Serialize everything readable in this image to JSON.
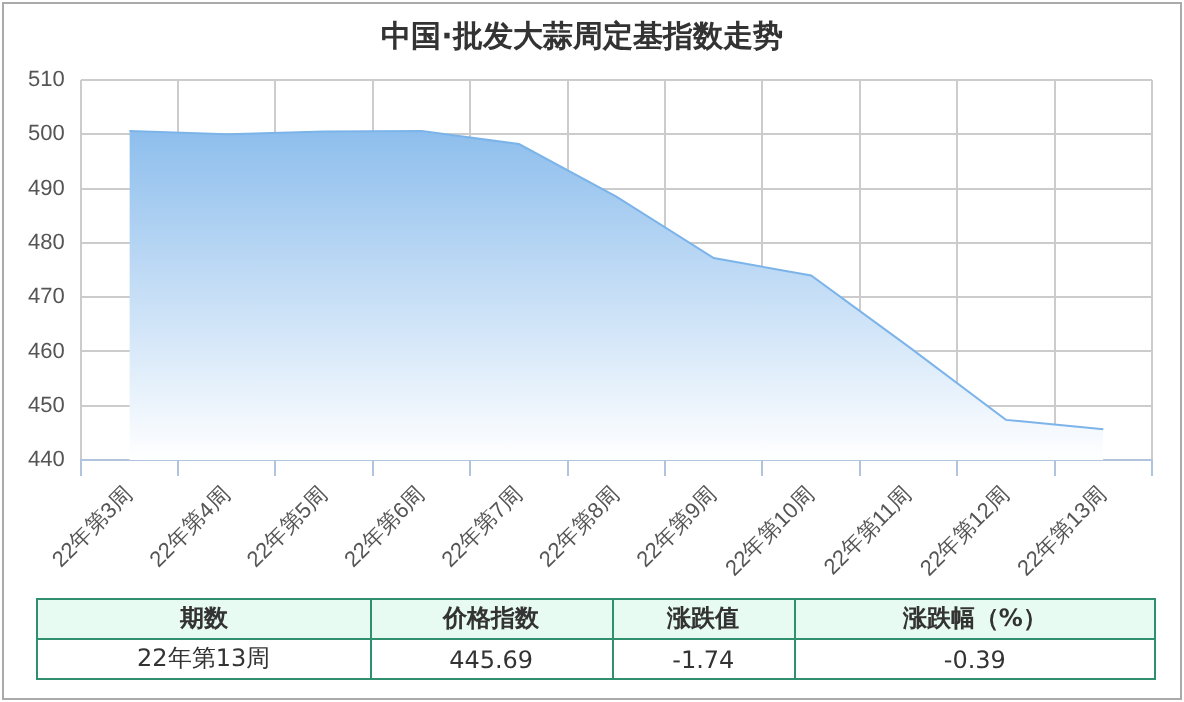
{
  "chart_data": {
    "type": "area",
    "title": "中国·批发大蒜周定基指数走势",
    "categories": [
      "22年第3周",
      "22年第4周",
      "22年第5周",
      "22年第6周",
      "22年第7周",
      "22年第8周",
      "22年第9周",
      "22年第10周",
      "22年第11周",
      "22年第12周",
      "22年第13周"
    ],
    "values": [
      500.6,
      500.0,
      500.5,
      500.6,
      498.2,
      488.5,
      477.2,
      474.0,
      460.9,
      447.4,
      445.69
    ],
    "color": "#7cb4ea",
    "ylim": [
      440,
      510
    ],
    "yticks": [
      440,
      450,
      460,
      470,
      480,
      490,
      500,
      510
    ],
    "grid": true,
    "legend": false,
    "annotations": [
      "期数",
      "价格指数",
      "涨跌值",
      "涨跌幅（%）",
      "22年第13周",
      "445.69",
      "-1.74",
      "-0.39"
    ]
  }
}
